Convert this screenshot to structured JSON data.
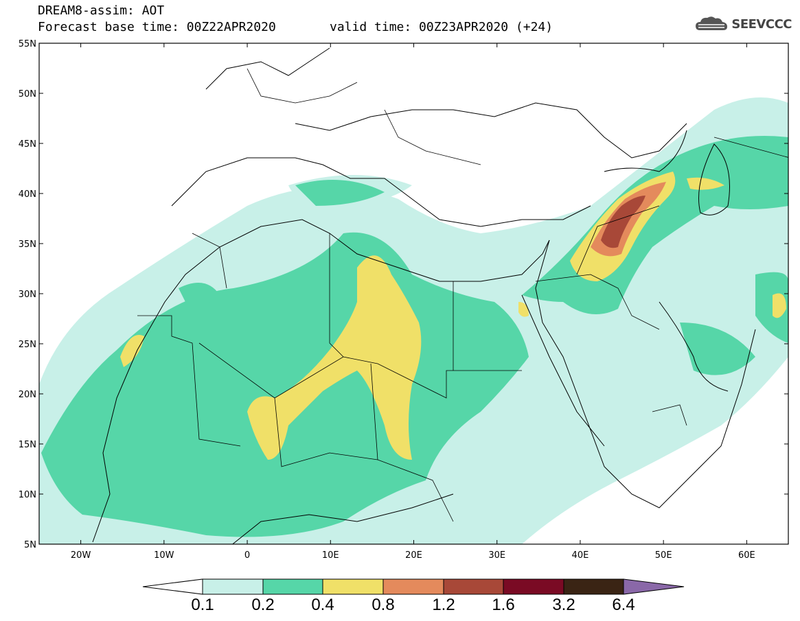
{
  "header": {
    "title": "DREAM8-assim: AOT",
    "base_time": "Forecast base time: 00Z22APR2020",
    "valid_time": "valid time: 00Z23APR2020 (+24)",
    "logo_text": "SEEVCCC"
  },
  "map": {
    "lat_labels": [
      "55N",
      "50N",
      "45N",
      "40N",
      "35N",
      "30N",
      "25N",
      "20N",
      "15N",
      "10N",
      "5N"
    ],
    "lon_labels": [
      "20W",
      "10W",
      "0",
      "10E",
      "20E",
      "30E",
      "40E",
      "50E",
      "60E"
    ],
    "extent": {
      "lon_min": -25,
      "lon_max": 65,
      "lat_min": 5,
      "lat_max": 55
    }
  },
  "colorbar": {
    "labels": [
      "0.1",
      "0.2",
      "0.4",
      "0.8",
      "1.2",
      "1.6",
      "3.2",
      "6.4"
    ],
    "colors": [
      "#ffffff",
      "#c8f0e8",
      "#56d6a8",
      "#f0e068",
      "#e48a5c",
      "#a84838",
      "#7a0a24",
      "#3a2414",
      "#8a68a8"
    ]
  },
  "colors": {
    "level_0_1": "#c8f0e8",
    "level_0_2": "#56d6a8",
    "level_0_4": "#f0e068",
    "level_0_8": "#e48a5c",
    "level_1_2": "#a84838"
  }
}
